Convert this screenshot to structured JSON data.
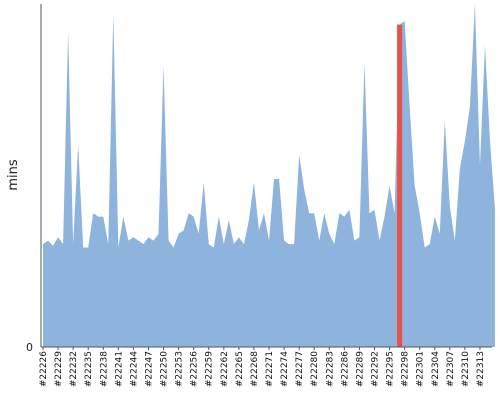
{
  "chart_data": {
    "type": "area",
    "title": "",
    "xlabel": "",
    "ylabel": "mins",
    "ylim": [
      0,
      100
    ],
    "y_ticks": [
      "0"
    ],
    "x_tick_labels": [
      "#22226",
      "#22229",
      "#22232",
      "#22235",
      "#22238",
      "#22241",
      "#22244",
      "#22247",
      "#22250",
      "#22253",
      "#22256",
      "#22259",
      "#22262",
      "#22265",
      "#22268",
      "#22271",
      "#22274",
      "#22277",
      "#22280",
      "#22283",
      "#22286",
      "#22289",
      "#22292",
      "#22295",
      "#22298",
      "#22301",
      "#22304",
      "#22307",
      "#22310",
      "#22313"
    ],
    "x_start": 22226,
    "x_end": 22315,
    "highlight": {
      "x": 22297,
      "color": "#e8514a"
    },
    "colors": {
      "area": "#8eb3dc",
      "axis": "#555555"
    },
    "series": [
      {
        "values": [
          30,
          31,
          29.5,
          32,
          30,
          92,
          30,
          59,
          29,
          29,
          39,
          38,
          38,
          30,
          97,
          29,
          38,
          31,
          32,
          31,
          30,
          32,
          31,
          33,
          82,
          31,
          29,
          33,
          34,
          39,
          38,
          33,
          48,
          30,
          29,
          38,
          30,
          37,
          30,
          32,
          30,
          37,
          48,
          34,
          39,
          31,
          49,
          49,
          31,
          30,
          30,
          56,
          46,
          39,
          39,
          31,
          39,
          33,
          30,
          39,
          38,
          40,
          31,
          32,
          83,
          39,
          40,
          31,
          38,
          47,
          39,
          94,
          95,
          70,
          47,
          39,
          29,
          30,
          38,
          33,
          66,
          41,
          31,
          52,
          60,
          70,
          100,
          53,
          88,
          60,
          40
        ]
      }
    ]
  }
}
